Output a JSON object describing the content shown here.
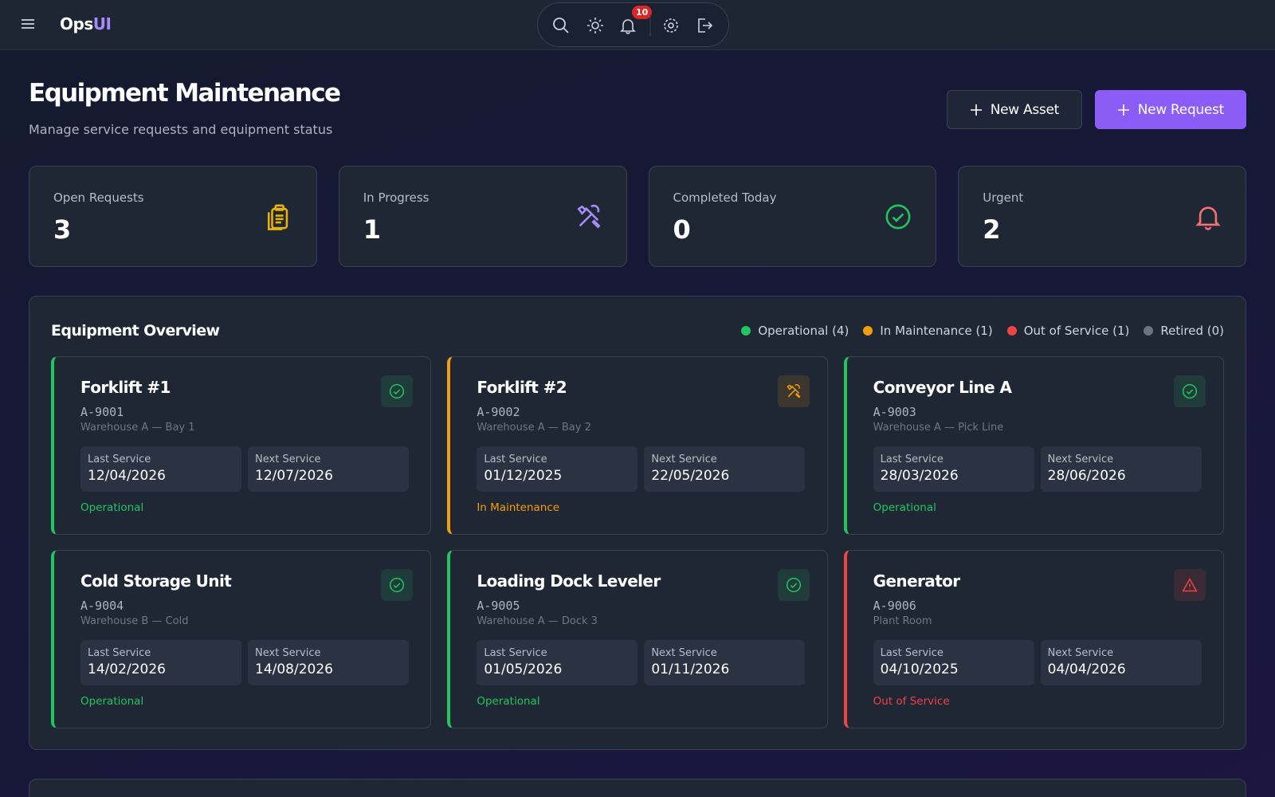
{
  "header": {
    "logo_main": "Ops",
    "logo_accent": "UI",
    "notification_count": 10
  },
  "page": {
    "title": "Equipment Maintenance",
    "subtitle": "Manage service requests and equipment status",
    "buttons": [
      "New Asset",
      "New Request"
    ]
  },
  "stats": [
    {
      "label": "Open Requests",
      "value": 3,
      "color": "#eab308"
    },
    {
      "label": "In Progress",
      "value": 1,
      "color": "#a78bfa"
    },
    {
      "label": "Completed Today",
      "value": 0,
      "color": "#22c55e"
    },
    {
      "label": "Urgent",
      "value": 2,
      "color": "#f87171"
    }
  ],
  "overview": {
    "title": "Equipment Overview",
    "legend": [
      {
        "label": "Operational (4)",
        "color": "#22c55e"
      },
      {
        "label": "In Maintenance (1)",
        "color": "#f59e0b"
      },
      {
        "label": "Out of Service (1)",
        "color": "#ef4444"
      },
      {
        "label": "Retired (0)",
        "color": "#6b7280"
      }
    ],
    "cards": [
      {
        "name": "Forklift #1",
        "id": "A-9001",
        "location": "Warehouse A — Bay 1",
        "last_label": "Last Service",
        "last": "12/04/2026",
        "next_label": "Next Service",
        "next": "12/07/2026",
        "status": "Operational",
        "color": "#22c55e"
      },
      {
        "name": "Forklift #2",
        "id": "A-9002",
        "location": "Warehouse A — Bay 2",
        "last_label": "Last Service",
        "last": "01/12/2025",
        "next_label": "Next Service",
        "next": "22/05/2026",
        "status": "In Maintenance",
        "color": "#f59e0b"
      },
      {
        "name": "Conveyor Line A",
        "id": "A-9003",
        "location": "Warehouse A — Pick Line",
        "last_label": "Last Service",
        "last": "28/03/2026",
        "next_label": "Next Service",
        "next": "28/06/2026",
        "status": "Operational",
        "color": "#22c55e"
      },
      {
        "name": "Cold Storage Unit",
        "id": "A-9004",
        "location": "Warehouse B — Cold",
        "last_label": "Last Service",
        "last": "14/02/2026",
        "next_label": "Next Service",
        "next": "14/08/2026",
        "status": "Operational",
        "color": "#22c55e"
      },
      {
        "name": "Loading Dock Leveler",
        "id": "A-9005",
        "location": "Warehouse A — Dock 3",
        "last_label": "Last Service",
        "last": "01/05/2026",
        "next_label": "Next Service",
        "next": "01/11/2026",
        "status": "Operational",
        "color": "#22c55e"
      },
      {
        "name": "Generator",
        "id": "A-9006",
        "location": "Plant Room",
        "last_label": "Last Service",
        "last": "04/10/2025",
        "next_label": "Next Service",
        "next": "04/04/2026",
        "status": "Out of Service",
        "color": "#ef4444"
      }
    ]
  }
}
